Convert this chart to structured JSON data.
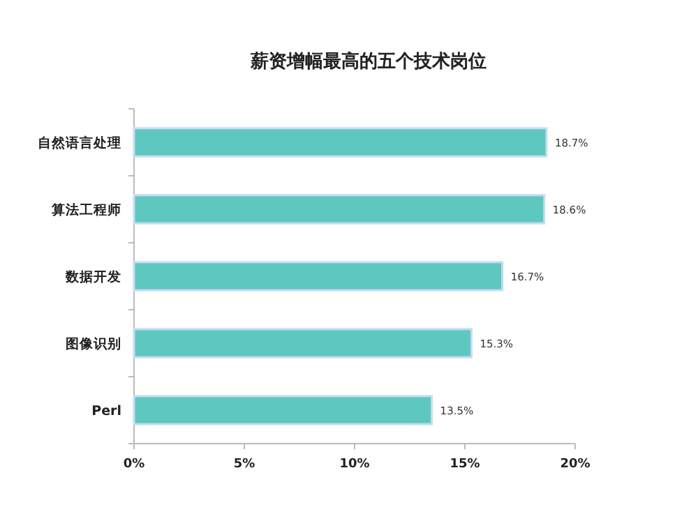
{
  "chart_data": {
    "type": "bar",
    "orientation": "horizontal",
    "title": "薪资增幅最高的五个技术岗位",
    "categories": [
      "自然语言处理",
      "算法工程师",
      "数据开发",
      "图像识别",
      "Perl"
    ],
    "values": [
      18.7,
      18.6,
      16.7,
      15.3,
      13.5
    ],
    "value_labels": [
      "18.7%",
      "18.6%",
      "16.7%",
      "15.3%",
      "13.5%"
    ],
    "color": "#5ec8c0",
    "xlim": [
      0,
      20
    ],
    "xticks": [
      {
        "value": 0,
        "label": "0%"
      },
      {
        "value": 5,
        "label": "5%"
      },
      {
        "value": 10,
        "label": "10%"
      },
      {
        "value": 15,
        "label": "15%"
      },
      {
        "value": 20,
        "label": "20%"
      }
    ],
    "grid": false
  }
}
